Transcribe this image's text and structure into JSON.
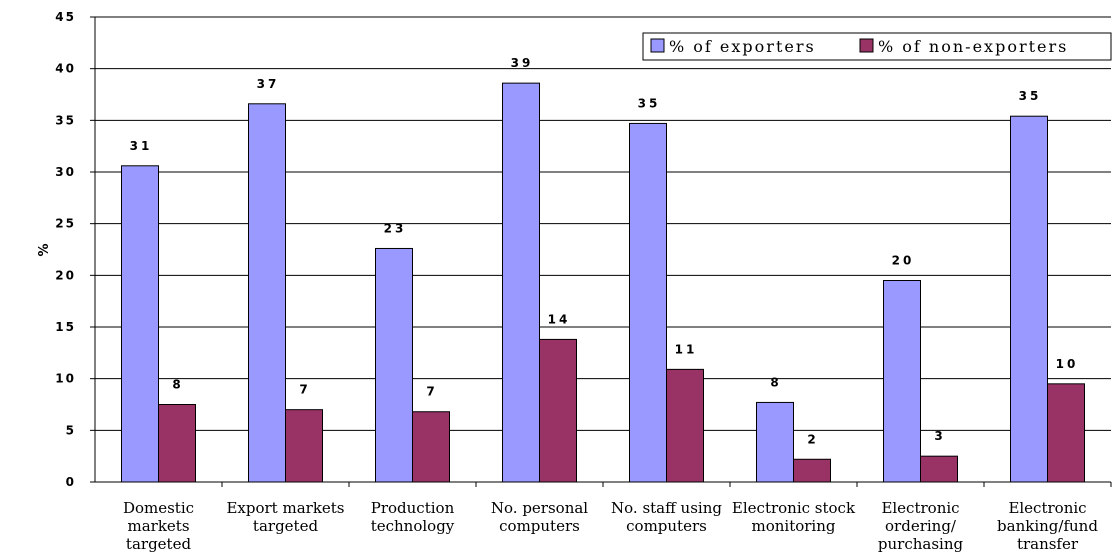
{
  "chart_data": {
    "type": "bar",
    "title": "",
    "ylabel": "%",
    "xlabel": "",
    "ylim": [
      0,
      45
    ],
    "yticks": [
      0,
      5,
      10,
      15,
      20,
      25,
      30,
      35,
      40,
      45
    ],
    "grid": true,
    "legend_position": "top-right",
    "categories": [
      [
        "Domestic",
        "markets",
        "targeted"
      ],
      [
        "Export markets",
        "targeted"
      ],
      [
        "Production",
        "technology"
      ],
      [
        "No. personal",
        "computers"
      ],
      [
        "No. staff using",
        "computers"
      ],
      [
        "Electronic stock",
        "monitoring"
      ],
      [
        "Electronic",
        "ordering/",
        "purchasing"
      ],
      [
        "Electronic",
        "banking/fund",
        "transfer"
      ]
    ],
    "series": [
      {
        "name": "% of exporters",
        "color": "#9999ff",
        "values": [
          30.6,
          36.6,
          22.6,
          38.6,
          34.7,
          7.7,
          19.5,
          35.4
        ],
        "labels": [
          "31",
          "37",
          "23",
          "39",
          "35",
          "8",
          "20",
          "35"
        ]
      },
      {
        "name": "% of non-exporters",
        "color": "#993366",
        "values": [
          7.5,
          7.0,
          6.8,
          13.8,
          10.9,
          2.2,
          2.5,
          9.5
        ],
        "labels": [
          "8",
          "7",
          "7",
          "14",
          "11",
          "2",
          "3",
          "10"
        ]
      }
    ]
  }
}
